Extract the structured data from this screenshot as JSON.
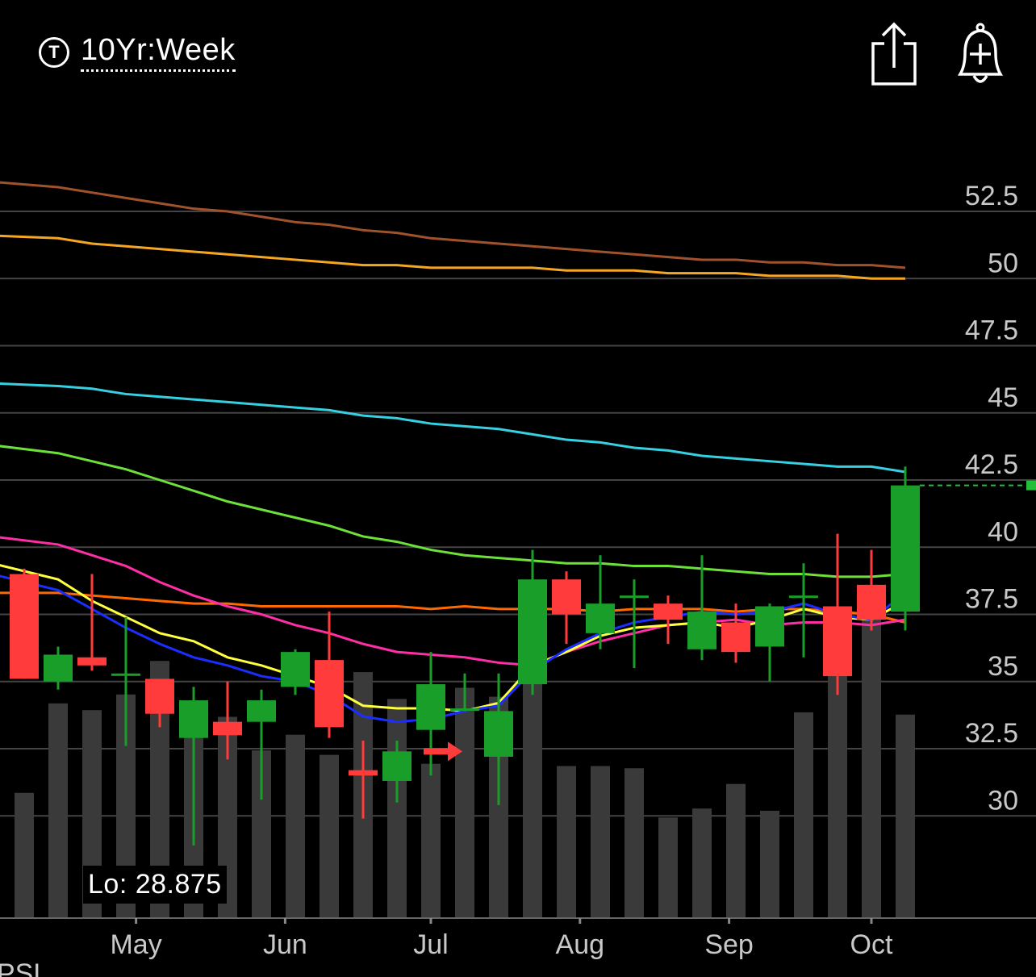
{
  "header": {
    "timeframe_badge": "T",
    "timeframe_label": "10Yr:Week",
    "share_icon": "share-icon",
    "alert_icon": "add-alert-bell-icon"
  },
  "low_label": "Lo: 28.875",
  "bottom_clipped_text": "PSL",
  "colors": {
    "background": "#000000",
    "grid": "#444444",
    "up": "#1a9e2a",
    "down": "#ff3b3b",
    "volume": "#3a3a3a",
    "price_line": "#22c03a"
  },
  "chart_data": {
    "type": "candlestick",
    "y_axis": {
      "ticks": [
        52.5,
        50,
        47.5,
        45,
        42.5,
        40,
        37.5,
        35,
        32.5,
        30
      ],
      "tick_labels": [
        "52.5",
        "50",
        "47.5",
        "45",
        "42.5",
        "40",
        "37.5",
        "35",
        "32.5",
        "30"
      ],
      "range": [
        25.5,
        54.6
      ],
      "side": "right"
    },
    "x_axis": {
      "labels": [
        "May",
        "Jun",
        "Jul",
        "Aug",
        "Sep",
        "Oct"
      ],
      "label_at_bar_index": [
        3.3,
        7.7,
        12,
        16.4,
        20.8,
        25
      ]
    },
    "candles": [
      {
        "o": 39,
        "h": 39.2,
        "l": 35.1,
        "c": 35.1
      },
      {
        "o": 35,
        "h": 36.3,
        "l": 34.7,
        "c": 36
      },
      {
        "o": 35.9,
        "h": 39,
        "l": 35.4,
        "c": 35.6
      },
      {
        "o": 35.3,
        "h": 37.4,
        "l": 32.6,
        "c": 35.3
      },
      {
        "o": 35.1,
        "h": 35.1,
        "l": 33.3,
        "c": 33.8
      },
      {
        "o": 32.9,
        "h": 34.8,
        "l": 28.9,
        "c": 34.3
      },
      {
        "o": 33.5,
        "h": 35,
        "l": 32.1,
        "c": 33
      },
      {
        "o": 33.5,
        "h": 34.7,
        "l": 30.6,
        "c": 34.3
      },
      {
        "o": 34.8,
        "h": 36.2,
        "l": 34.5,
        "c": 36.1
      },
      {
        "o": 35.8,
        "h": 37.6,
        "l": 32.9,
        "c": 33.3
      },
      {
        "o": 31.7,
        "h": 32.8,
        "l": 29.9,
        "c": 31.5
      },
      {
        "o": 31.3,
        "h": 32.8,
        "l": 30.5,
        "c": 32.4
      },
      {
        "o": 33.2,
        "h": 36.1,
        "l": 31.5,
        "c": 34.9
      },
      {
        "o": 34,
        "h": 35.3,
        "l": 33.9,
        "c": 34
      },
      {
        "o": 32.2,
        "h": 35.3,
        "l": 30.4,
        "c": 33.9
      },
      {
        "o": 34.9,
        "h": 39.9,
        "l": 34.5,
        "c": 38.8
      },
      {
        "o": 38.8,
        "h": 39.1,
        "l": 36.4,
        "c": 37.5
      },
      {
        "o": 36.8,
        "h": 39.7,
        "l": 36.2,
        "c": 37.9
      },
      {
        "o": 38.2,
        "h": 38.8,
        "l": 35.5,
        "c": 38.2
      },
      {
        "o": 37.9,
        "h": 38.2,
        "l": 36.4,
        "c": 37.3
      },
      {
        "o": 36.2,
        "h": 39.7,
        "l": 35.8,
        "c": 37.6
      },
      {
        "o": 37.2,
        "h": 37.9,
        "l": 35.7,
        "c": 36.1
      },
      {
        "o": 36.3,
        "h": 37.9,
        "l": 35,
        "c": 37.8
      },
      {
        "o": 38.2,
        "h": 39.4,
        "l": 35.9,
        "c": 38.2
      },
      {
        "o": 37.8,
        "h": 40.5,
        "l": 34.5,
        "c": 35.2
      },
      {
        "o": 38.6,
        "h": 39.9,
        "l": 36.9,
        "c": 37.3
      },
      {
        "o": 37.6,
        "h": 43,
        "l": 36.9,
        "c": 42.3
      }
    ],
    "volume_relative": [
      0.56,
      0.96,
      0.93,
      1,
      1.15,
      0.91,
      0.9,
      0.75,
      0.82,
      0.73,
      1.1,
      0.98,
      0.69,
      1.03,
      0.99,
      1.29,
      0.68,
      0.68,
      0.67,
      0.45,
      0.49,
      0.6,
      0.48,
      0.92,
      1.2,
      1.39,
      0.91
    ],
    "moving_averages": [
      {
        "color": "#a0522d",
        "values": [
          53.6,
          53.4,
          53.2,
          53,
          52.8,
          52.6,
          52.5,
          52.3,
          52.1,
          52,
          51.8,
          51.7,
          51.5,
          51.4,
          51.3,
          51.2,
          51.1,
          51,
          50.9,
          50.8,
          50.7,
          50.7,
          50.6,
          50.6,
          50.5,
          50.5,
          50.4
        ]
      },
      {
        "color": "#f5a623",
        "values": [
          51.6,
          51.5,
          51.3,
          51.2,
          51.1,
          51,
          50.9,
          50.8,
          50.7,
          50.6,
          50.5,
          50.5,
          50.4,
          50.4,
          50.4,
          50.4,
          50.3,
          50.3,
          50.3,
          50.2,
          50.2,
          50.2,
          50.1,
          50.1,
          50.1,
          50.0,
          50.0
        ]
      },
      {
        "color": "#36d0e0",
        "values": [
          46.1,
          46,
          45.9,
          45.7,
          45.6,
          45.5,
          45.4,
          45.3,
          45.2,
          45.1,
          44.9,
          44.8,
          44.6,
          44.5,
          44.4,
          44.2,
          44.0,
          43.9,
          43.7,
          43.6,
          43.4,
          43.3,
          43.2,
          43.1,
          43,
          43,
          42.8
        ]
      },
      {
        "color": "#6ee03a",
        "values": [
          43.8,
          43.5,
          43.2,
          42.9,
          42.5,
          42.1,
          41.7,
          41.4,
          41.1,
          40.8,
          40.4,
          40.2,
          39.9,
          39.7,
          39.6,
          39.5,
          39.4,
          39.4,
          39.3,
          39.3,
          39.2,
          39.1,
          39,
          39,
          38.9,
          38.9,
          39
        ]
      },
      {
        "color": "#ff6a00",
        "values": [
          38.3,
          38.3,
          38.2,
          38.1,
          38,
          37.9,
          37.9,
          37.8,
          37.8,
          37.8,
          37.8,
          37.8,
          37.7,
          37.8,
          37.7,
          37.7,
          37.7,
          37.6,
          37.7,
          37.7,
          37.7,
          37.6,
          37.7,
          37.7,
          37.6,
          37.5,
          37.2
        ]
      },
      {
        "color": "#ff2ea6",
        "values": [
          40.4,
          40.1,
          39.7,
          39.3,
          38.7,
          38.2,
          37.8,
          37.5,
          37.1,
          36.8,
          36.4,
          36.1,
          36,
          35.9,
          35.7,
          35.6,
          36.1,
          36.5,
          36.8,
          37.1,
          37.2,
          37.3,
          37.1,
          37.2,
          37.2,
          37.1,
          37.3
        ]
      },
      {
        "color": "#ffff40",
        "values": [
          39.4,
          38.8,
          38,
          37.4,
          36.8,
          36.5,
          35.9,
          35.6,
          35.2,
          34.8,
          34.1,
          34,
          34,
          33.9,
          34.2,
          35.6,
          36.1,
          36.7,
          37,
          37.1,
          37.2,
          37,
          37.3,
          37.7,
          37.4,
          37.3,
          38
        ]
      },
      {
        "color": "#1a2eff",
        "values": [
          39,
          38.4,
          37.7,
          37,
          36.4,
          35.9,
          35.6,
          35.2,
          35,
          34.5,
          33.7,
          33.5,
          33.6,
          33.9,
          34.1,
          35.4,
          36.2,
          36.8,
          37.2,
          37.4,
          37.6,
          37.5,
          37.6,
          37.9,
          37.5,
          37.3,
          38.3
        ]
      }
    ],
    "last_price": 42.3,
    "low": 28.875,
    "annotations": [
      {
        "type": "arrow-right",
        "bar_index": 12.5,
        "price": 32.4,
        "color": "#ff3b3b"
      }
    ]
  }
}
